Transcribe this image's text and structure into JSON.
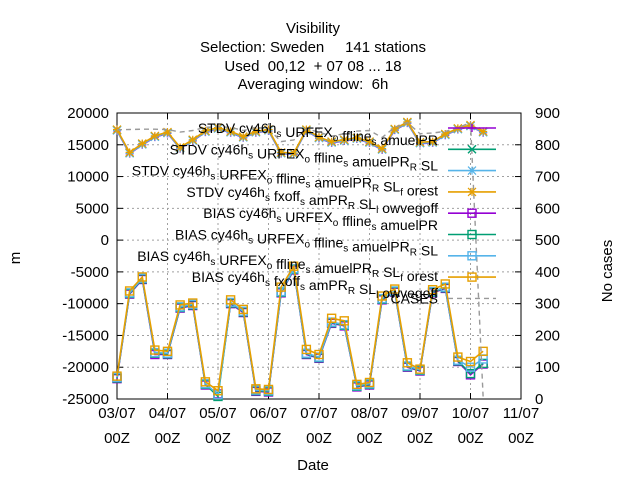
{
  "chart_data": {
    "type": "line",
    "title_lines": [
      "Visibility",
      "Selection: Sweden     141 stations",
      "Used  00,12  + 07 08 ... 18",
      "Averaging window:  6h"
    ],
    "xlabel": "Date",
    "ylabel": "m",
    "y2label": "No cases",
    "xticks": [
      {
        "l1": "03/07",
        "l2": "00Z"
      },
      {
        "l1": "04/07",
        "l2": "00Z"
      },
      {
        "l1": "05/07",
        "l2": "00Z"
      },
      {
        "l1": "06/07",
        "l2": "00Z"
      },
      {
        "l1": "07/07",
        "l2": "00Z"
      },
      {
        "l1": "08/07",
        "l2": "00Z"
      },
      {
        "l1": "09/07",
        "l2": "00Z"
      },
      {
        "l1": "10/07",
        "l2": "00Z"
      },
      {
        "l1": "11/07",
        "l2": "00Z"
      }
    ],
    "yticks": [
      "-25000",
      "-20000",
      "-15000",
      "-10000",
      "-5000",
      "0",
      "5000",
      "10000",
      "15000",
      "20000"
    ],
    "y2ticks": [
      "0",
      "100",
      "200",
      "300",
      "400",
      "500",
      "600",
      "700",
      "800",
      "900"
    ],
    "ylim": [
      -25000,
      20000
    ],
    "y2lim": [
      0,
      900
    ],
    "xlim_days": [
      0,
      8
    ],
    "x_days": [
      0,
      0.25,
      0.5,
      0.75,
      1,
      1.25,
      1.5,
      1.75,
      2,
      2.25,
      2.5,
      2.75,
      3,
      3.25,
      3.5,
      3.75,
      4,
      4.25,
      4.5,
      4.75,
      5,
      5.25,
      5.5,
      5.75,
      6,
      6.25,
      6.5,
      6.75,
      7,
      7.25
    ],
    "grid": true,
    "legend_position": "top-right",
    "series": [
      {
        "name": "STDV cy46h_s URFEX_o ffline_s amuelPR",
        "color": "#9400d3",
        "marker": "plus",
        "values": [
          17200,
          13600,
          15000,
          16200,
          16800,
          14400,
          15600,
          17000,
          17500,
          16900,
          16100,
          16900,
          17200,
          13600,
          13500,
          17200,
          16000,
          15300,
          15600,
          15900,
          15300,
          14200,
          17300,
          18400,
          15200,
          15300,
          16500,
          17400,
          17900,
          16900
        ]
      },
      {
        "name": "STDV cy46h_s URFEX_o ffline_s amuelPR_R SL",
        "color": "#009e73",
        "marker": "x",
        "values": [
          17300,
          13700,
          15100,
          16300,
          16900,
          14500,
          15700,
          17100,
          17600,
          17000,
          16200,
          17000,
          17300,
          13700,
          13600,
          17300,
          16100,
          15400,
          15700,
          16000,
          15400,
          14300,
          17400,
          18500,
          15300,
          15400,
          16600,
          17500,
          18000,
          17000
        ]
      },
      {
        "name": "STDV cy46h_s URFEX_o ffline_s amuelPR_R SL_f orest",
        "color": "#56b4e9",
        "marker": "star",
        "values": [
          17250,
          13650,
          15050,
          16250,
          16850,
          14450,
          15650,
          17050,
          17550,
          16950,
          16150,
          16950,
          17250,
          13650,
          13550,
          17250,
          16050,
          15350,
          15650,
          15950,
          15350,
          14250,
          17350,
          18450,
          15250,
          15350,
          16550,
          17450,
          17950,
          16950
        ]
      },
      {
        "name": "STDV cy46h_s fxoff_s amPR_R SL_l owvegoff",
        "color": "#e69f00",
        "marker": "star",
        "values": [
          17400,
          13800,
          15200,
          16400,
          17000,
          14600,
          15800,
          17200,
          17700,
          17100,
          16300,
          17100,
          17400,
          13800,
          13700,
          17400,
          16200,
          15500,
          15800,
          16100,
          15500,
          14400,
          17500,
          18600,
          15400,
          15500,
          16700,
          17600,
          18100,
          17100
        ]
      },
      {
        "name": "BIAS cy46h_s URFEX_o ffline_s amuelPR",
        "color": "#9400d3",
        "marker": "square",
        "values": [
          -21800,
          -8500,
          -6200,
          -18000,
          -18000,
          -10700,
          -10300,
          -22800,
          -24200,
          -10000,
          -11400,
          -23800,
          -23900,
          -8300,
          -4700,
          -18000,
          -18600,
          -13100,
          -13500,
          -23100,
          -22800,
          -9400,
          -8200,
          -20000,
          -20600,
          -8300,
          -7600,
          -19100,
          -21200,
          -19500
        ]
      },
      {
        "name": "BIAS cy46h_s URFEX_o ffline_s amuelPR_R SL",
        "color": "#009e73",
        "marker": "square",
        "values": [
          -21700,
          -8400,
          -6100,
          -17800,
          -17900,
          -10600,
          -10200,
          -22700,
          -24600,
          -9900,
          -11300,
          -23700,
          -23800,
          -8200,
          -4600,
          -17900,
          -18500,
          -13000,
          -13400,
          -23000,
          -22700,
          -9300,
          -8100,
          -19900,
          -20500,
          -8200,
          -7500,
          -19000,
          -21000,
          -19400
        ]
      },
      {
        "name": "BIAS cy46h_s URFEX_o ffline_s amuelPR_R SL_f orest",
        "color": "#56b4e9",
        "marker": "square",
        "values": [
          -21600,
          -8300,
          -6000,
          -17700,
          -17800,
          -10500,
          -10100,
          -22600,
          -24300,
          -9800,
          -11200,
          -23600,
          -23700,
          -8100,
          -4500,
          -17800,
          -18400,
          -12900,
          -13300,
          -22900,
          -22600,
          -9200,
          -8000,
          -19800,
          -20400,
          -8100,
          -7400,
          -18900,
          -20000,
          -18700
        ]
      },
      {
        "name": "BIAS cy46h_s fxoff_s amPR_R SL_l owvegoff",
        "color": "#e69f00",
        "marker": "square",
        "values": [
          -21400,
          -8000,
          -5800,
          -17300,
          -17500,
          -10200,
          -9900,
          -22300,
          -23700,
          -9400,
          -10900,
          -23400,
          -23500,
          -7400,
          -4100,
          -17200,
          -18000,
          -12300,
          -12700,
          -22700,
          -22400,
          -8800,
          -7700,
          -19300,
          -20300,
          -7800,
          -6900,
          -18400,
          -19100,
          -17500
        ]
      },
      {
        "name": "CASES",
        "color": "#999999",
        "marker": "none",
        "dashed": true,
        "axis": "y2",
        "values": [
          847,
          848,
          849,
          849,
          848,
          840,
          845,
          855,
          857,
          855,
          845,
          855,
          850,
          810,
          815,
          850,
          840,
          827,
          835,
          843,
          845,
          823,
          855,
          870,
          835,
          837,
          842,
          853,
          870,
          8
        ]
      }
    ]
  }
}
